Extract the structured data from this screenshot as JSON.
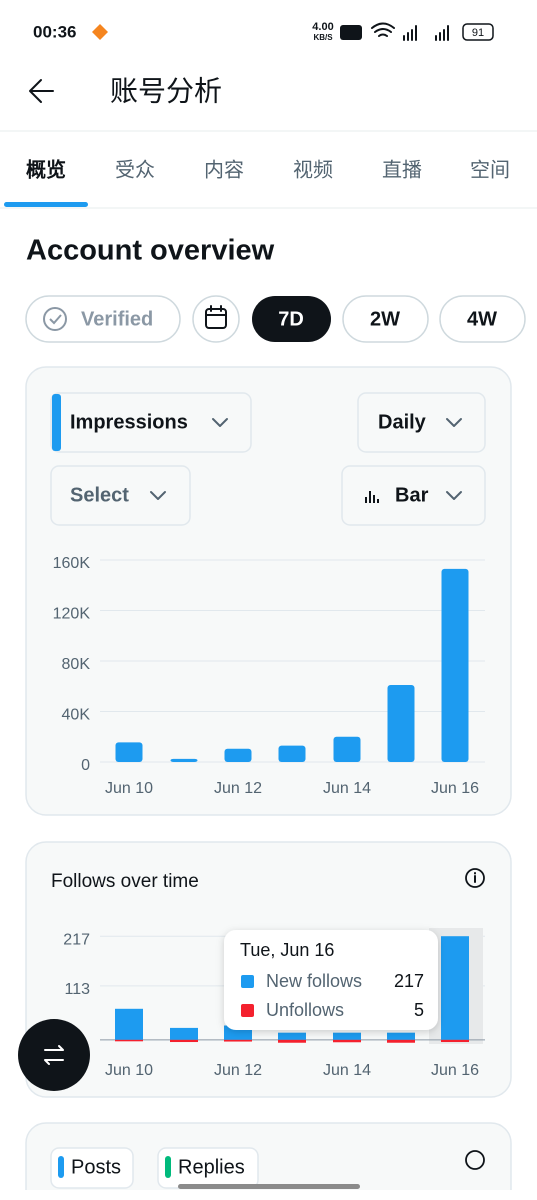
{
  "status_bar": {
    "time": "00:36",
    "network_speed": "4.00",
    "network_unit": "KB/S",
    "battery": "91"
  },
  "header": {
    "title": "账号分析"
  },
  "tabs": [
    "概览",
    "受众",
    "内容",
    "视频",
    "直播",
    "空间"
  ],
  "section_title": "Account overview",
  "filters": [
    "Verified",
    "7D",
    "2W",
    "4W"
  ],
  "impressions_card": {
    "metric": "Impressions",
    "period": "Daily",
    "compare": "Select",
    "chart_style": "Bar"
  },
  "bottom_card": {
    "tabs": [
      "Posts",
      "Replies"
    ]
  },
  "chart_data": [
    {
      "type": "bar",
      "categories": [
        "Jun 10",
        null,
        "Jun 12",
        null,
        "Jun 14",
        null,
        "Jun 16"
      ],
      "values": [
        15500,
        2500,
        10500,
        13000,
        20000,
        61000,
        153000
      ],
      "color": "#1d9bf0",
      "ylim": [
        0,
        160000
      ],
      "yticks": [
        0,
        {
          "value": 40000,
          "label": "40K"
        },
        {
          "value": 80000,
          "label": "80K"
        },
        {
          "value": 120000,
          "label": "120K"
        },
        {
          "value": 160000,
          "label": "160K"
        }
      ],
      "grid": true
    },
    {
      "type": "bar",
      "title": "Follows over time",
      "categories": [
        "Jun 10",
        null,
        "Jun 12",
        null,
        "Jun 14",
        null,
        "Jun 16"
      ],
      "series": [
        {
          "name": "New follows",
          "color": "#1d9bf0",
          "values": [
            65,
            25,
            30,
            15,
            15,
            15,
            217
          ]
        },
        {
          "name": "Unfollows",
          "color": "#f4212e",
          "values": [
            2,
            5,
            3,
            8,
            6,
            8,
            5
          ]
        }
      ],
      "ylim": [
        -15,
        230
      ],
      "yticks": [
        113,
        217
      ],
      "grid": true,
      "tooltip": {
        "title": "Tue, Jun 16"
      }
    }
  ]
}
